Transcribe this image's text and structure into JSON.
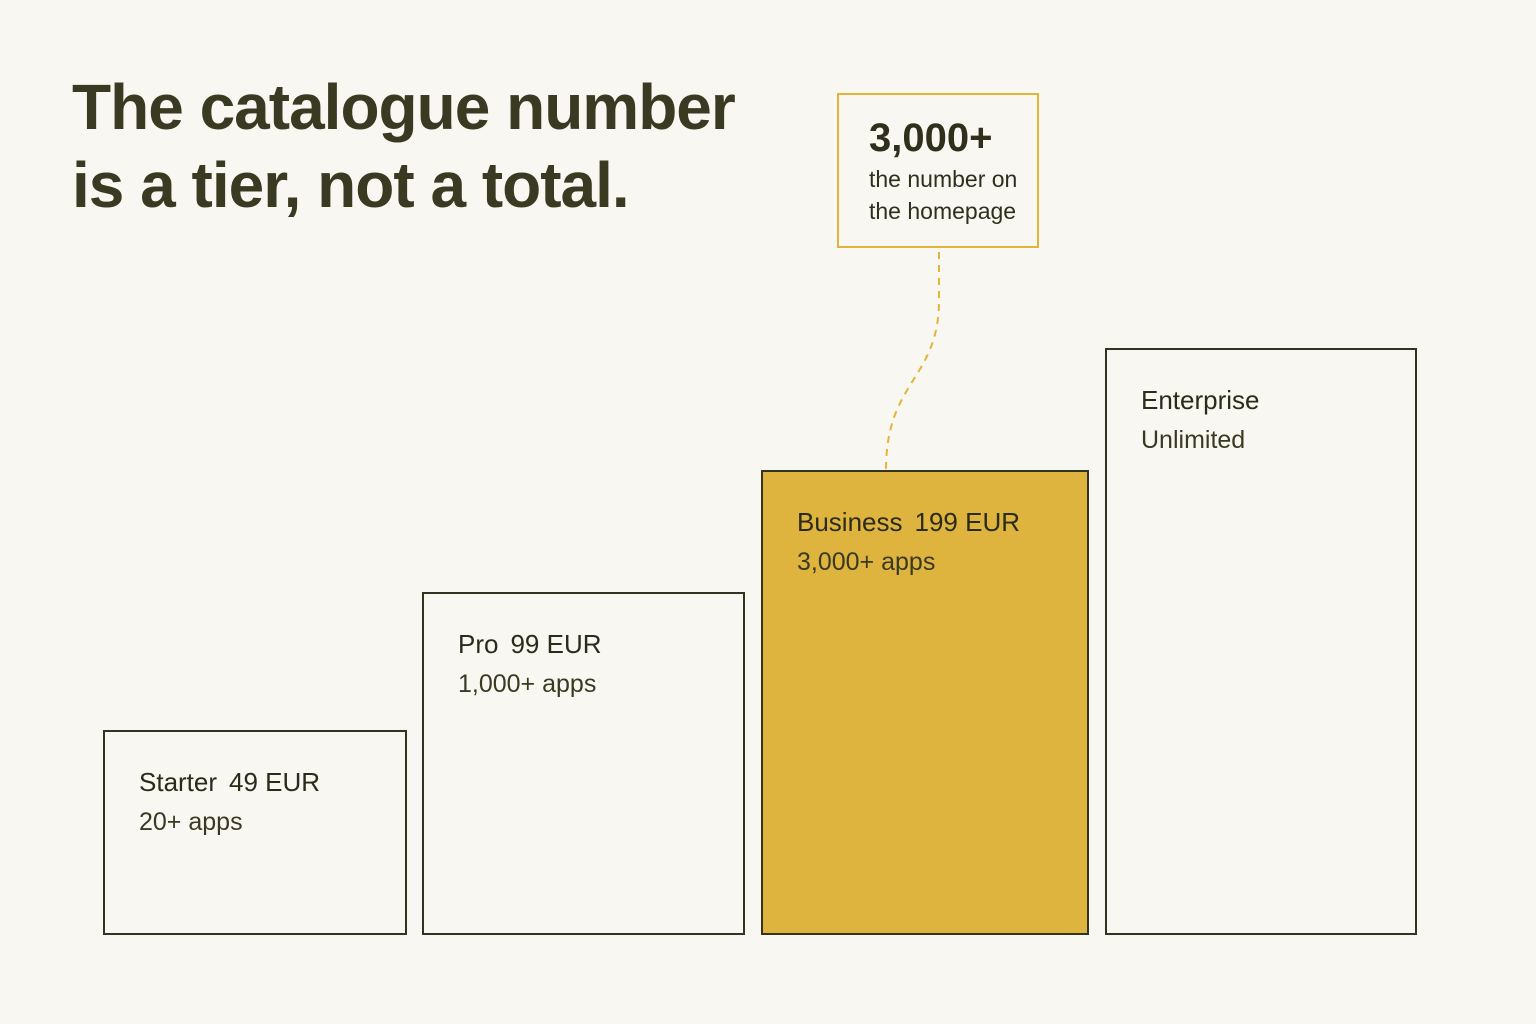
{
  "headline": {
    "line1": "The catalogue number",
    "line2": "is a tier, not a total."
  },
  "callout": {
    "value": "3,000+",
    "line1": "the number on",
    "line2": "the homepage",
    "border_color": "#e2b43a"
  },
  "tiers": [
    {
      "name": "Starter",
      "price": "49 EUR",
      "apps": "20+ apps",
      "highlighted": false
    },
    {
      "name": "Pro",
      "price": "99 EUR",
      "apps": "1,000+ apps",
      "highlighted": false
    },
    {
      "name": "Business",
      "price": "199 EUR",
      "apps": "3,000+ apps",
      "highlighted": true
    },
    {
      "name": "Enterprise",
      "price": "",
      "apps": "Unlimited",
      "highlighted": false
    }
  ],
  "colors": {
    "background": "#f8f7f1",
    "text": "#3a3a22",
    "outline": "#33331f",
    "highlight": "#deb43f",
    "accent": "#e2b43a"
  }
}
